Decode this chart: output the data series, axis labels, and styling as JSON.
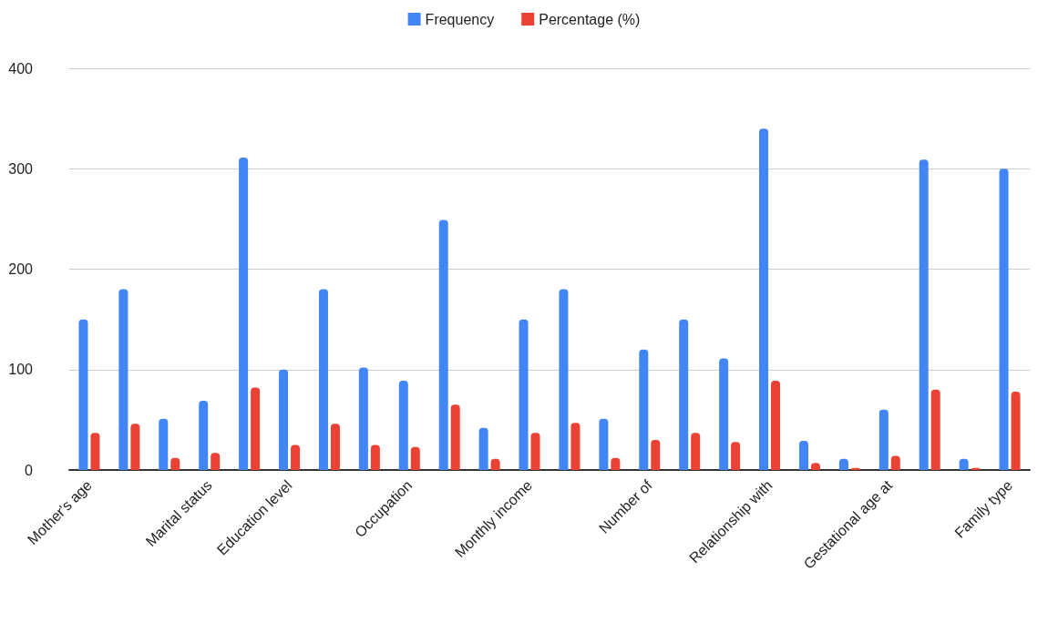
{
  "chart_data": {
    "type": "bar",
    "categories": [
      "Mother's age",
      null,
      null,
      "Marital status",
      null,
      "Education level",
      null,
      null,
      "Occupation",
      null,
      null,
      "Monthly income",
      null,
      null,
      "Number of",
      null,
      null,
      "Relationship with",
      null,
      null,
      "Gestational age at",
      null,
      null,
      "Family type"
    ],
    "series": [
      {
        "name": "Frequency",
        "color": "#4285f4",
        "values": [
          150,
          180,
          51,
          69,
          311,
          100,
          180,
          102,
          89,
          249,
          42,
          150,
          180,
          51,
          120,
          150,
          111,
          340,
          29,
          11,
          60,
          309,
          11,
          300
        ]
      },
      {
        "name": "Percentage (%)",
        "color": "#ea4335",
        "values": [
          37,
          46,
          12,
          17,
          82,
          25,
          46,
          25,
          23,
          65,
          11,
          37,
          47,
          12,
          30,
          37,
          28,
          89,
          7,
          2,
          14,
          80,
          2,
          78
        ]
      }
    ],
    "ylim": [
      0,
      400
    ],
    "yticks": [
      0,
      100,
      200,
      300,
      400
    ],
    "grid": "y",
    "legend": "top"
  }
}
